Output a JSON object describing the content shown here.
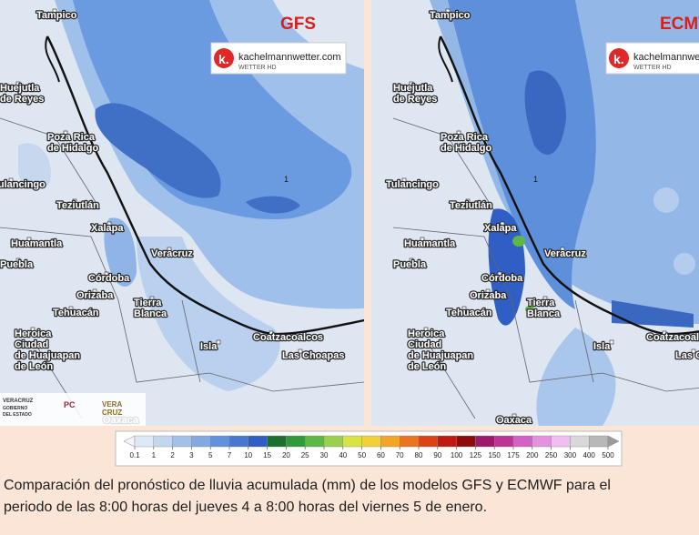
{
  "panels": [
    {
      "model": "GFS",
      "logo": "kachelmannwetter.com",
      "logo_sub": "WETTER HD",
      "contour_label": "1"
    },
    {
      "model": "ECMWF",
      "logo": "kachelmannwetter.com",
      "logo_sub": "WETTER HD",
      "contour_label": "1"
    }
  ],
  "places": [
    [
      "Tampico"
    ],
    [
      "Huejutla",
      "de Reyes"
    ],
    [
      "Poza Rica",
      "de Hidalgo"
    ],
    [
      "Tulancingo"
    ],
    [
      "Teziutlán"
    ],
    [
      "Xalapa"
    ],
    [
      "Huamantla"
    ],
    [
      "Puebla"
    ],
    [
      "Veracruz"
    ],
    [
      "Córdoba"
    ],
    [
      "Orizaba"
    ],
    [
      "Tehuacán"
    ],
    [
      "Tierra",
      "Blanca"
    ],
    [
      "Heroica",
      "Ciudad",
      "de Huajuapan",
      "de León"
    ],
    [
      "Isla"
    ],
    [
      "Coatzacoalcos"
    ],
    [
      "Las Choapas"
    ],
    [
      "Oaxaca"
    ]
  ],
  "sponsors": [
    "VERACRUZ",
    "GOBIERNO",
    "DEL ESTADO",
    "PC",
    "VERA",
    "CRUZ"
  ],
  "colorbar": {
    "labels": [
      0.1,
      1,
      2,
      3,
      5,
      7,
      10,
      15,
      20,
      25,
      30,
      40,
      50,
      60,
      70,
      80,
      90,
      100,
      125,
      150,
      175,
      200,
      250,
      300,
      400,
      500
    ],
    "colors": [
      "#f4f4fb",
      "#dfe8f6",
      "#c2d6f0",
      "#a3c0ea",
      "#82a9e2",
      "#6391dc",
      "#4678d2",
      "#2f5ec4",
      "#1d6f2e",
      "#2f9a3a",
      "#5fb845",
      "#9ad14c",
      "#d8e344",
      "#f2d038",
      "#f2a628",
      "#ea7520",
      "#dc4216",
      "#c01a12",
      "#8c0c0c",
      "#9c1a6a",
      "#bc3496",
      "#d462c4",
      "#e492e0",
      "#f0bef0",
      "#d8d8d8",
      "#b8b8b8",
      "#9a9a9a"
    ]
  },
  "caption": [
    "Comparación del pronóstico de lluvia acumulada (mm) de los modelos GFS y ECMWF para el",
    "periodo de las 8:00 horas del jueves 4 a 8:00 horas del viernes 5 de enero."
  ]
}
